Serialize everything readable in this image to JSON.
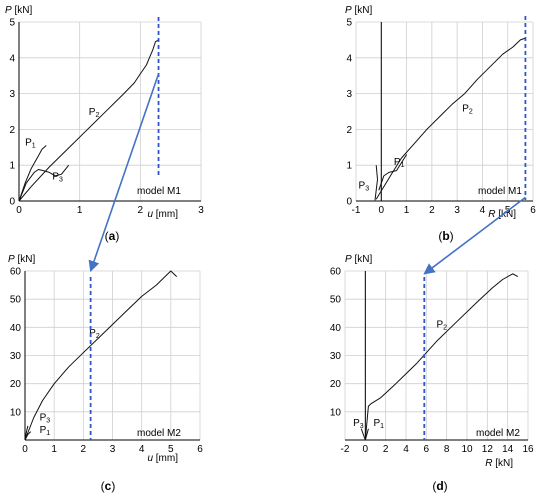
{
  "chart_data": [
    {
      "id": "a",
      "type": "line",
      "caption": "a",
      "model_label": "model M1",
      "xlabel": {
        "sym": "u",
        "unit": "[mm]"
      },
      "ylabel": {
        "sym": "P",
        "unit": "[kN]"
      },
      "xlim": [
        0,
        3
      ],
      "ylim": [
        0,
        5
      ],
      "xticks": [
        "0",
        "1",
        "2",
        "3"
      ],
      "yticks": [
        "0",
        "1",
        "2",
        "3",
        "4",
        "5"
      ],
      "grid": true,
      "dashed_x": 2.3,
      "series": [
        {
          "name": "P2",
          "points": [
            [
              0,
              0
            ],
            [
              0.2,
              0.4
            ],
            [
              0.5,
              0.95
            ],
            [
              0.8,
              1.45
            ],
            [
              1.1,
              1.95
            ],
            [
              1.4,
              2.45
            ],
            [
              1.7,
              2.95
            ],
            [
              1.9,
              3.3
            ],
            [
              2.0,
              3.55
            ],
            [
              2.1,
              3.8
            ],
            [
              2.15,
              4.0
            ],
            [
              2.2,
              4.2
            ],
            [
              2.25,
              4.45
            ],
            [
              2.3,
              4.5
            ]
          ]
        },
        {
          "name": "P1",
          "points": [
            [
              0,
              0
            ],
            [
              0.1,
              0.5
            ],
            [
              0.2,
              0.9
            ],
            [
              0.3,
              1.2
            ],
            [
              0.38,
              1.45
            ],
            [
              0.45,
              1.55
            ]
          ]
        },
        {
          "name": "P3",
          "points": [
            [
              0,
              0
            ],
            [
              0.12,
              0.5
            ],
            [
              0.25,
              0.8
            ],
            [
              0.32,
              0.88
            ],
            [
              0.4,
              0.85
            ],
            [
              0.5,
              0.8
            ],
            [
              0.6,
              0.7
            ],
            [
              0.7,
              0.75
            ],
            [
              0.82,
              1.0
            ]
          ]
        }
      ],
      "labels": [
        {
          "text": "P",
          "sub": "2",
          "x": 1.15,
          "y": 2.4
        },
        {
          "text": "P",
          "sub": "1",
          "x": 0.1,
          "y": 1.55
        },
        {
          "text": "P",
          "sub": "3",
          "x": 0.55,
          "y": 0.6
        }
      ]
    },
    {
      "id": "b",
      "type": "line",
      "caption": "b",
      "model_label": "model M1",
      "xlabel": {
        "sym": "R",
        "unit": "[kN]"
      },
      "ylabel": {
        "sym": "P",
        "unit": "[kN]"
      },
      "xlim": [
        -1,
        6
      ],
      "ylim": [
        0,
        5
      ],
      "xticks": [
        "-1",
        "0",
        "1",
        "2",
        "3",
        "4",
        "5",
        "6"
      ],
      "yticks": [
        "0",
        "1",
        "2",
        "3",
        "4",
        "5"
      ],
      "grid": true,
      "dashed_x": 5.7,
      "series": [
        {
          "name": "P2",
          "points": [
            [
              -0.2,
              0.05
            ],
            [
              0.1,
              0.4
            ],
            [
              0.4,
              0.75
            ],
            [
              0.8,
              1.2
            ],
            [
              1.3,
              1.6
            ],
            [
              1.8,
              2.0
            ],
            [
              2.3,
              2.35
            ],
            [
              2.8,
              2.7
            ],
            [
              3.3,
              3.0
            ],
            [
              3.8,
              3.4
            ],
            [
              4.3,
              3.75
            ],
            [
              4.8,
              4.1
            ],
            [
              5.2,
              4.3
            ],
            [
              5.5,
              4.5
            ],
            [
              5.7,
              4.55
            ]
          ]
        },
        {
          "name": "P1",
          "points": [
            [
              -0.1,
              0.3
            ],
            [
              0.1,
              0.7
            ],
            [
              0.3,
              0.8
            ],
            [
              0.6,
              0.85
            ],
            [
              1.0,
              1.3
            ]
          ]
        },
        {
          "name": "P3",
          "points": [
            [
              -0.25,
              0.02
            ],
            [
              -0.15,
              0.6
            ],
            [
              -0.2,
              1.0
            ]
          ]
        }
      ],
      "labels": [
        {
          "text": "P",
          "sub": "2",
          "x": 3.2,
          "y": 2.5
        },
        {
          "text": "P",
          "sub": "1",
          "x": 0.5,
          "y": 1.0
        },
        {
          "text": "P",
          "sub": "3",
          "x": -0.9,
          "y": 0.35
        }
      ]
    },
    {
      "id": "c",
      "type": "line",
      "caption": "c",
      "model_label": "model M2",
      "xlabel": {
        "sym": "u",
        "unit": "[mm]"
      },
      "ylabel": {
        "sym": "P",
        "unit": "[kN]"
      },
      "xlim": [
        0,
        6
      ],
      "ylim": [
        0,
        60
      ],
      "xticks": [
        "0",
        "1",
        "2",
        "3",
        "4",
        "5",
        "6"
      ],
      "yticks": [
        "10",
        "20",
        "30",
        "40",
        "50",
        "60"
      ],
      "grid": true,
      "dashed_x": 2.25,
      "series": [
        {
          "name": "P2",
          "points": [
            [
              0,
              0
            ],
            [
              0.3,
              8
            ],
            [
              0.6,
              14
            ],
            [
              1.0,
              20
            ],
            [
              1.5,
              26
            ],
            [
              2.0,
              31
            ],
            [
              2.5,
              36
            ],
            [
              3.0,
              41
            ],
            [
              3.5,
              46
            ],
            [
              4.0,
              51
            ],
            [
              4.5,
              55
            ],
            [
              4.8,
              58
            ],
            [
              5.0,
              60
            ],
            [
              5.2,
              58
            ]
          ]
        },
        {
          "name": "P1",
          "points": [
            [
              0,
              0
            ],
            [
              0.05,
              3
            ],
            [
              0.1,
              5
            ]
          ]
        },
        {
          "name": "P3",
          "points": [
            [
              0,
              0
            ],
            [
              0.1,
              2
            ],
            [
              0.2,
              3
            ]
          ]
        }
      ],
      "labels": [
        {
          "text": "P",
          "sub": "2",
          "x": 2.2,
          "y": 37
        },
        {
          "text": "P",
          "sub": "3",
          "x": 0.5,
          "y": 7
        },
        {
          "text": "P",
          "sub": "1",
          "x": 0.5,
          "y": 2.5
        }
      ]
    },
    {
      "id": "d",
      "type": "line",
      "caption": "d",
      "model_label": "model M2",
      "xlabel": {
        "sym": "R",
        "unit": "[kN]"
      },
      "ylabel": {
        "sym": "P",
        "unit": "[kN]"
      },
      "xlim": [
        -2,
        16
      ],
      "ylim": [
        0,
        60
      ],
      "xticks": [
        "-2",
        "0",
        "2",
        "4",
        "6",
        "8",
        "10",
        "12",
        "14",
        "16"
      ],
      "yticks": [
        "10",
        "20",
        "30",
        "40",
        "50",
        "60"
      ],
      "grid": true,
      "dashed_x": 5.8,
      "series": [
        {
          "name": "P2",
          "points": [
            [
              0,
              0
            ],
            [
              0.3,
              12
            ],
            [
              0.6,
              13
            ],
            [
              1.5,
              15
            ],
            [
              3,
              20
            ],
            [
              5,
              27
            ],
            [
              7,
              35
            ],
            [
              9,
              42
            ],
            [
              11,
              49
            ],
            [
              12.5,
              54
            ],
            [
              13.5,
              57
            ],
            [
              14.5,
              59
            ],
            [
              15,
              58
            ]
          ]
        },
        {
          "name": "P1",
          "points": [
            [
              0,
              0
            ],
            [
              0.15,
              2
            ],
            [
              0.3,
              4
            ]
          ]
        },
        {
          "name": "P3",
          "points": [
            [
              0,
              0
            ],
            [
              -0.2,
              2
            ],
            [
              -0.4,
              4
            ]
          ]
        }
      ],
      "labels": [
        {
          "text": "P",
          "sub": "2",
          "x": 7.0,
          "y": 40
        },
        {
          "text": "P",
          "sub": "3",
          "x": -1.2,
          "y": 5
        },
        {
          "text": "P",
          "sub": "1",
          "x": 0.8,
          "y": 5
        }
      ]
    }
  ],
  "colors": {
    "curve": "#111111",
    "dashed": "#2f55c9",
    "arrow": "#4472c4",
    "grid": "#cfcfcf"
  }
}
